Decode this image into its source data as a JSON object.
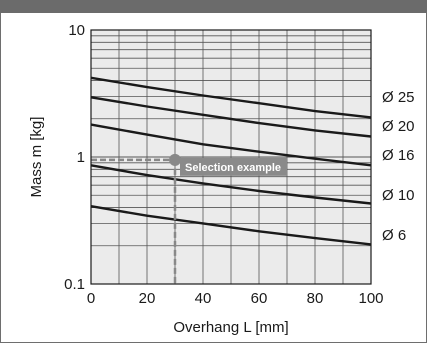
{
  "chart_data": {
    "type": "line",
    "xlabel": "Overhang L [mm]",
    "ylabel": "Mass m [kg]",
    "xlim": [
      0,
      100
    ],
    "ylim": [
      0.1,
      10
    ],
    "y_scale": "log",
    "x_ticks": [
      "0",
      "20",
      "40",
      "60",
      "80",
      "100"
    ],
    "y_ticks": [
      "0.1",
      "1",
      "10"
    ],
    "grid": true,
    "series": [
      {
        "name": "Ø 25",
        "x": [
          0,
          20,
          40,
          60,
          80,
          100
        ],
        "y": [
          4.2,
          3.55,
          3.05,
          2.65,
          2.3,
          2.05
        ]
      },
      {
        "name": "Ø 20",
        "x": [
          0,
          20,
          40,
          60,
          80,
          100
        ],
        "y": [
          2.95,
          2.5,
          2.15,
          1.85,
          1.62,
          1.45
        ]
      },
      {
        "name": "Ø 16",
        "x": [
          0,
          20,
          40,
          60,
          80,
          100
        ],
        "y": [
          1.8,
          1.5,
          1.26,
          1.1,
          0.97,
          0.86
        ]
      },
      {
        "name": "Ø 10",
        "x": [
          0,
          20,
          40,
          60,
          80,
          100
        ],
        "y": [
          0.86,
          0.72,
          0.62,
          0.54,
          0.48,
          0.43
        ]
      },
      {
        "name": "Ø 6",
        "x": [
          0,
          20,
          40,
          60,
          80,
          100
        ],
        "y": [
          0.41,
          0.345,
          0.3,
          0.26,
          0.23,
          0.205
        ]
      }
    ],
    "annotation": {
      "text": "Selection example",
      "x": 30,
      "y": 0.95
    }
  }
}
